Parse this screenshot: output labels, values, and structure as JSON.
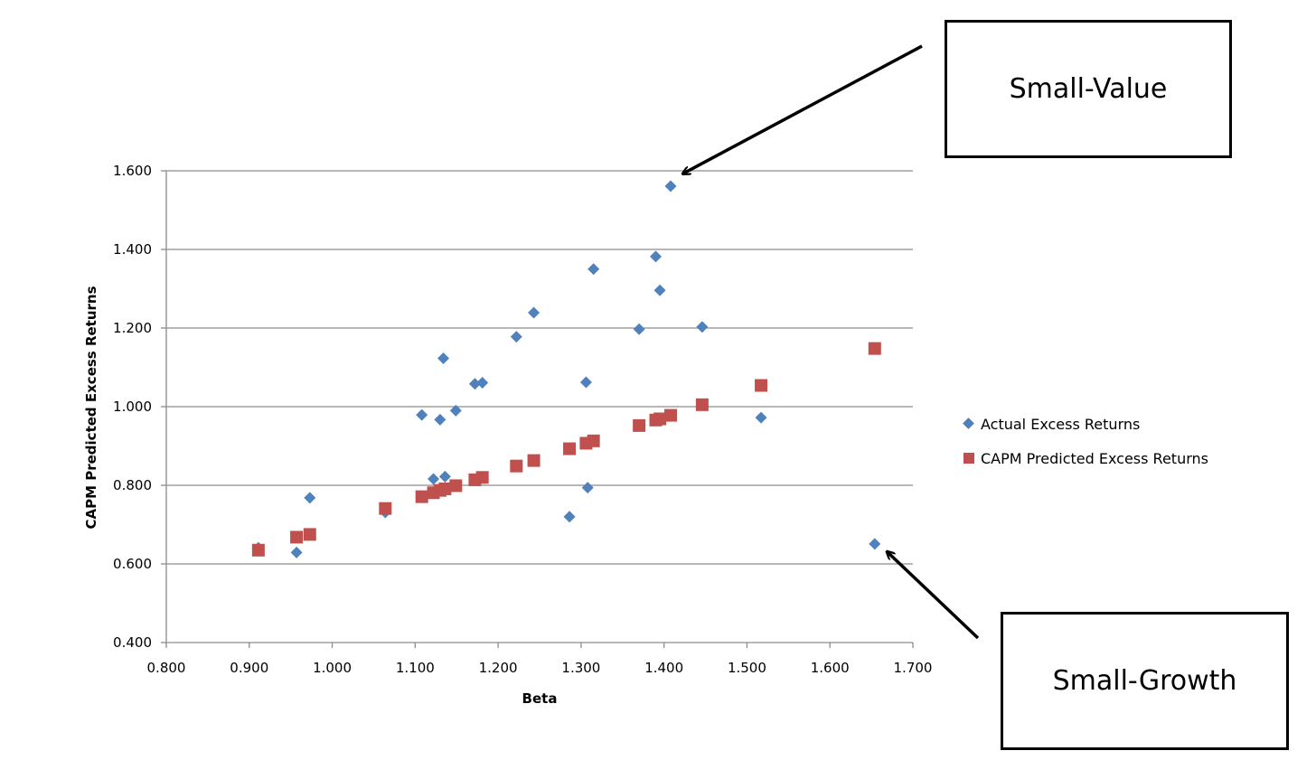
{
  "chart_data": {
    "type": "scatter",
    "title": "",
    "xlabel": "Beta",
    "ylabel": "CAPM Predicted Excess Returns",
    "xlim": [
      0.8,
      1.7
    ],
    "ylim": [
      0.4,
      1.6
    ],
    "x_ticks": [
      "0.800",
      "0.900",
      "1.000",
      "1.100",
      "1.200",
      "1.300",
      "1.400",
      "1.500",
      "1.600",
      "1.700"
    ],
    "y_ticks": [
      "0.400",
      "0.600",
      "0.800",
      "1.000",
      "1.200",
      "1.400",
      "1.600"
    ],
    "grid": "horizontal",
    "legend_position": "right",
    "series": [
      {
        "name": "Actual Excess Returns",
        "marker": "diamond",
        "color": "#4F81BD",
        "points": [
          {
            "x": 0.911,
            "y": 0.641
          },
          {
            "x": 0.957,
            "y": 0.629
          },
          {
            "x": 0.973,
            "y": 0.768
          },
          {
            "x": 1.064,
            "y": 0.731
          },
          {
            "x": 1.108,
            "y": 0.979
          },
          {
            "x": 1.122,
            "y": 0.816
          },
          {
            "x": 1.13,
            "y": 0.967
          },
          {
            "x": 1.134,
            "y": 1.123
          },
          {
            "x": 1.136,
            "y": 0.822
          },
          {
            "x": 1.149,
            "y": 0.99
          },
          {
            "x": 1.172,
            "y": 1.058
          },
          {
            "x": 1.181,
            "y": 1.061
          },
          {
            "x": 1.222,
            "y": 1.178
          },
          {
            "x": 1.243,
            "y": 1.239
          },
          {
            "x": 1.286,
            "y": 0.72
          },
          {
            "x": 1.306,
            "y": 1.062
          },
          {
            "x": 1.308,
            "y": 0.794
          },
          {
            "x": 1.315,
            "y": 1.35
          },
          {
            "x": 1.37,
            "y": 1.197
          },
          {
            "x": 1.39,
            "y": 1.382
          },
          {
            "x": 1.395,
            "y": 1.296
          },
          {
            "x": 1.408,
            "y": 1.561
          },
          {
            "x": 1.446,
            "y": 1.203
          },
          {
            "x": 1.517,
            "y": 0.972
          },
          {
            "x": 1.654,
            "y": 0.651
          }
        ]
      },
      {
        "name": "CAPM Predicted Excess Returns",
        "marker": "square",
        "color": "#C0504D",
        "points": [
          {
            "x": 0.911,
            "y": 0.635
          },
          {
            "x": 0.957,
            "y": 0.668
          },
          {
            "x": 0.973,
            "y": 0.675
          },
          {
            "x": 1.064,
            "y": 0.741
          },
          {
            "x": 1.108,
            "y": 0.771
          },
          {
            "x": 1.122,
            "y": 0.781
          },
          {
            "x": 1.13,
            "y": 0.787
          },
          {
            "x": 1.136,
            "y": 0.791
          },
          {
            "x": 1.149,
            "y": 0.799
          },
          {
            "x": 1.172,
            "y": 0.814
          },
          {
            "x": 1.181,
            "y": 0.82
          },
          {
            "x": 1.222,
            "y": 0.849
          },
          {
            "x": 1.243,
            "y": 0.863
          },
          {
            "x": 1.286,
            "y": 0.893
          },
          {
            "x": 1.306,
            "y": 0.907
          },
          {
            "x": 1.315,
            "y": 0.913
          },
          {
            "x": 1.37,
            "y": 0.952
          },
          {
            "x": 1.39,
            "y": 0.966
          },
          {
            "x": 1.395,
            "y": 0.969
          },
          {
            "x": 1.408,
            "y": 0.978
          },
          {
            "x": 1.446,
            "y": 1.005
          },
          {
            "x": 1.517,
            "y": 1.054
          },
          {
            "x": 1.654,
            "y": 1.148
          }
        ]
      }
    ],
    "annotations": [
      {
        "text": "Small-Value",
        "target": {
          "x": 1.408,
          "y": 1.561
        }
      },
      {
        "text": "Small-Growth",
        "target": {
          "x": 1.654,
          "y": 0.651
        }
      }
    ]
  },
  "colors": {
    "actual": "#4F81BD",
    "capm": "#C0504D",
    "gridline": "#8C8C8C",
    "axis": "#8C8C8C"
  }
}
